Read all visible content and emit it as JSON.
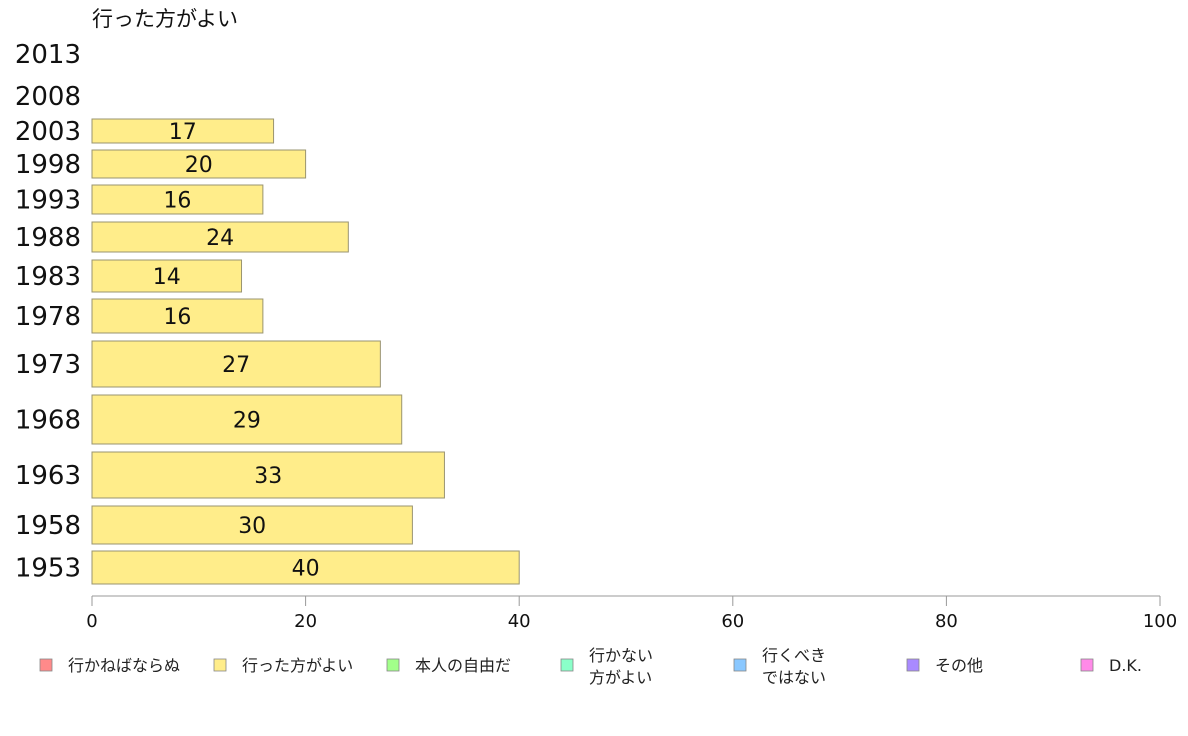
{
  "chart_data": {
    "type": "bar",
    "orientation": "horizontal",
    "title": "行った方がよい",
    "categories": [
      "2013",
      "2008",
      "2003",
      "1998",
      "1993",
      "1988",
      "1983",
      "1978",
      "1973",
      "1968",
      "1963",
      "1958",
      "1953"
    ],
    "values": [
      null,
      null,
      17,
      20,
      16,
      24,
      14,
      16,
      27,
      29,
      33,
      30,
      40
    ],
    "xlim": [
      0,
      100
    ],
    "xticks": [
      0,
      20,
      40,
      60,
      80,
      100
    ],
    "bar_color": "#ffed8a",
    "bar_stroke": "#9a9470",
    "legend": [
      {
        "lines": [
          "行かねばならぬ"
        ],
        "color": "#ff8a8a"
      },
      {
        "lines": [
          "行った方がよい"
        ],
        "color": "#ffed8a"
      },
      {
        "lines": [
          "本人の自由だ"
        ],
        "color": "#a2ff8a"
      },
      {
        "lines": [
          "行かない",
          "方がよい"
        ],
        "color": "#8affc9"
      },
      {
        "lines": [
          "行くべき",
          "ではない"
        ],
        "color": "#8ac8ff"
      },
      {
        "lines": [
          "その他"
        ],
        "color": "#a98aff"
      },
      {
        "lines": [
          "D.K."
        ],
        "color": "#ff8ae8"
      }
    ],
    "legend_position": "bottom"
  }
}
